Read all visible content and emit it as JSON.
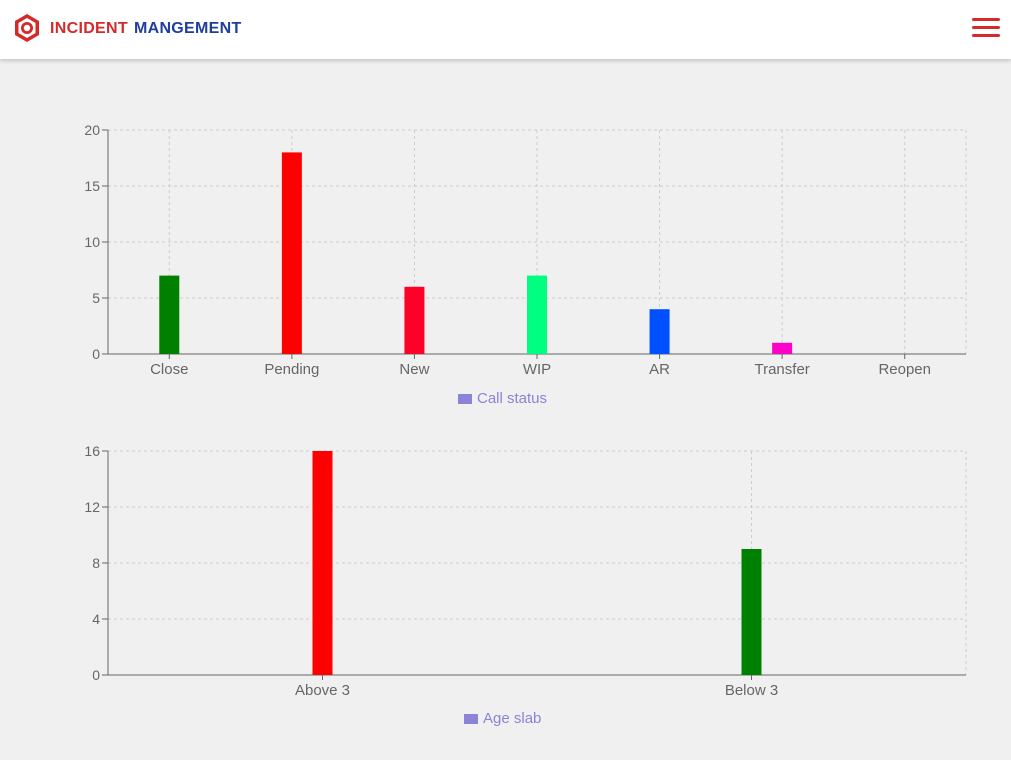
{
  "app": {
    "title_part1": "INCIDENT",
    "title_part2": "MANGEMENT",
    "logo_icon": "hexagon-gear-icon",
    "menu_icon": "hamburger-menu-icon"
  },
  "colors": {
    "brand_red": "#d42a2a",
    "brand_blue": "#1f3f9a",
    "legend": "#8a84d8",
    "grid": "#cccccc",
    "axis": "#666666"
  },
  "chart_data": [
    {
      "type": "bar",
      "categories": [
        "Close",
        "Pending",
        "New",
        "WIP",
        "AR",
        "Transfer",
        "Reopen"
      ],
      "series": [
        {
          "name": "Call status",
          "values": [
            7,
            18,
            6,
            7,
            4,
            1,
            0
          ],
          "colors": [
            "#008000",
            "#ff0000",
            "#ff0028",
            "#00ff80",
            "#0050ff",
            "#ff00c8",
            "#cccccc"
          ]
        }
      ],
      "ylim": [
        0,
        20
      ],
      "yticks": [
        0,
        5,
        10,
        15,
        20
      ],
      "grid": true,
      "legend_position": "bottom-center"
    },
    {
      "type": "bar",
      "categories": [
        "Above 3",
        "Below 3"
      ],
      "series": [
        {
          "name": "Age slab",
          "values": [
            16,
            9
          ],
          "colors": [
            "#ff0000",
            "#008000"
          ]
        }
      ],
      "ylim": [
        0,
        16
      ],
      "yticks": [
        0,
        4,
        8,
        12,
        16
      ],
      "grid": true,
      "legend_position": "bottom-center"
    }
  ]
}
